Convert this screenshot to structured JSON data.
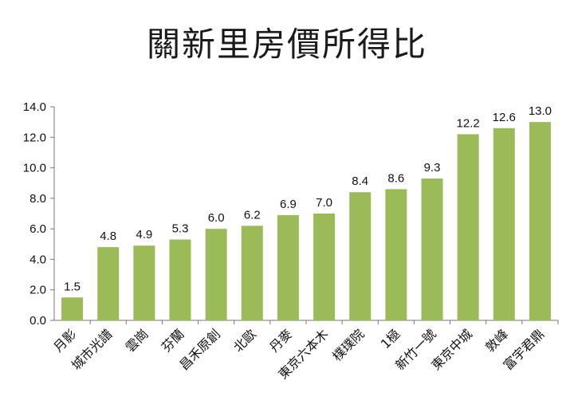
{
  "chart_data": {
    "type": "bar",
    "title": "關新里房價所得比",
    "categories": [
      "月影",
      "城市光譜",
      "雲崗",
      "芬蘭",
      "昌禾原創",
      "北歐",
      "丹麥",
      "東京六本木",
      "樸璞院",
      "1極",
      "新竹一號",
      "東京中城",
      "敦峰",
      "富宇君鼎"
    ],
    "values": [
      1.5,
      4.8,
      4.9,
      5.3,
      6.0,
      6.2,
      6.9,
      7.0,
      8.4,
      8.6,
      9.3,
      12.2,
      12.6,
      13.0
    ],
    "data_labels": [
      "1.5",
      "4.8",
      "4.9",
      "5.3",
      "6.0",
      "6.2",
      "6.9",
      "7.0",
      "8.4",
      "8.6",
      "9.3",
      "12.2",
      "12.6",
      "13.0"
    ],
    "y_ticks": [
      "0.0",
      "2.0",
      "4.0",
      "6.0",
      "8.0",
      "10.0",
      "12.0",
      "14.0"
    ],
    "ylim": [
      0,
      14
    ],
    "xlabel": "",
    "ylabel": "",
    "grid": false,
    "legend": "none",
    "bar_color": "#9bbb59"
  }
}
